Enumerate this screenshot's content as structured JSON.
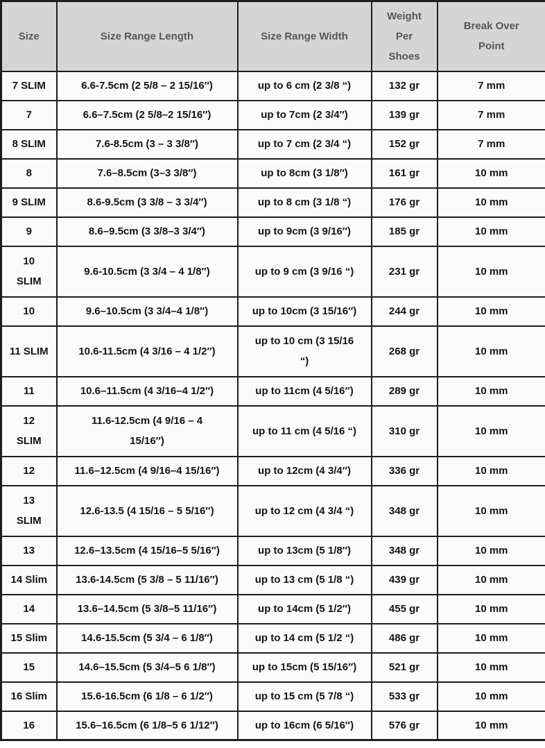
{
  "colors": {
    "header_bg": "#d5d5d5",
    "header_text": "#575757",
    "body_bg": "#fbfbfb",
    "body_text": "#141414",
    "grid_border": "#1d1d1d"
  },
  "chart_data": {
    "type": "table",
    "title": "",
    "columns": [
      "Size",
      "Size Range Length",
      "Size Range Width",
      "Weight\nPer\nShoes",
      "Break Over\nPoint"
    ],
    "rows": [
      [
        "7 SLIM",
        "6.6-7.5cm (2 5/8 – 2 15/16″)",
        "up to 6 cm (2 3/8 “)",
        "132 gr",
        "7 mm"
      ],
      [
        "7",
        "6.6–7.5cm (2 5/8–2 15/16″)",
        "up to 7cm (2 3/4″)",
        "139 gr",
        "7 mm"
      ],
      [
        "8 SLIM",
        "7.6-8.5cm (3 – 3 3/8″)",
        "up to 7 cm (2 3/4 “)",
        "152 gr",
        "7 mm"
      ],
      [
        "8",
        "7.6–8.5cm (3–3 3/8″)",
        "up to 8cm (3 1/8″)",
        "161 gr",
        "10 mm"
      ],
      [
        "9 SLIM",
        "8.6-9.5cm (3 3/8 – 3 3/4″)",
        "up to 8 cm (3 1/8 “)",
        "176 gr",
        "10 mm"
      ],
      [
        "9",
        "8.6–9.5cm (3 3/8–3 3/4″)",
        "up to 9cm (3 9/16″)",
        "185 gr",
        "10 mm"
      ],
      [
        "10\nSLIM",
        "9.6-10.5cm (3 3/4 – 4 1/8″)",
        "up to 9 cm (3 9/16 “)",
        "231 gr",
        "10 mm"
      ],
      [
        "10",
        "9.6–10.5cm (3 3/4–4 1/8″)",
        "up to 10cm (3 15/16″)",
        "244 gr",
        "10 mm"
      ],
      [
        "11 SLIM",
        "10.6-11.5cm (4 3/16 – 4 1/2″)",
        "up to 10 cm (3 15/16\n“)",
        "268 gr",
        "10 mm"
      ],
      [
        "11",
        "10.6–11.5cm (4 3/16–4 1/2″)",
        "up to 11cm (4 5/16″)",
        "289 gr",
        "10 mm"
      ],
      [
        "12\nSLIM",
        "11.6-12.5cm (4 9/16 – 4\n15/16″)",
        "up to 11 cm (4 5/16 “)",
        "310 gr",
        "10 mm"
      ],
      [
        "12",
        "11.6–12.5cm (4 9/16–4 15/16″)",
        "up to 12cm (4 3/4″)",
        "336 gr",
        "10 mm"
      ],
      [
        "13\nSLIM",
        "12.6-13.5 (4 15/16 – 5 5/16″)",
        "up to 12 cm (4 3/4 “)",
        "348 gr",
        "10 mm"
      ],
      [
        "13",
        "12.6–13.5cm (4 15/16–5 5/16″)",
        "up to 13cm (5 1/8″)",
        "348 gr",
        "10 mm"
      ],
      [
        "14 Slim",
        "13.6-14.5cm (5 3/8 – 5 11/16″)",
        "up to 13 cm (5 1/8 “)",
        "439 gr",
        "10 mm"
      ],
      [
        "14",
        "13.6–14.5cm (5 3/8–5 11/16″)",
        "up to 14cm (5 1/2″)",
        "455 gr",
        "10 mm"
      ],
      [
        "15 Slim",
        "14.6-15.5cm (5 3/4 – 6 1/8″)",
        "up to 14 cm (5 1/2 “)",
        "486 gr",
        "10 mm"
      ],
      [
        "15",
        "14.6–15.5cm (5 3/4–5 6 1/8″)",
        "up to 15cm (5 15/16″)",
        "521 gr",
        "10 mm"
      ],
      [
        "16 Slim",
        "15.6-16.5cm (6 1/8 – 6 1/2″)",
        "up to 15 cm (5 7/8 “)",
        "533 gr",
        "10 mm"
      ],
      [
        "16",
        "15.6–16.5cm (6 1/8–5 6 1/12″)",
        "up to 16cm (6 5/16″)",
        "576 gr",
        "10 mm"
      ]
    ]
  }
}
